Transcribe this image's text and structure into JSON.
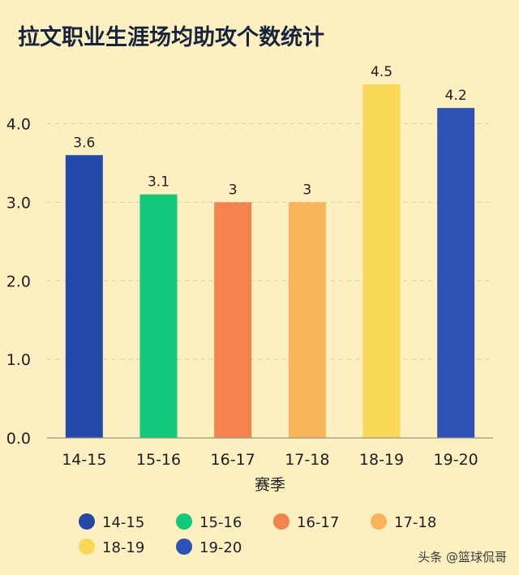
{
  "chart_data": {
    "type": "bar",
    "title": "拉文职业生涯场均助攻个数统计",
    "xlabel": "赛季",
    "ylabel": "",
    "categories": [
      "14-15",
      "15-16",
      "16-17",
      "17-18",
      "18-19",
      "19-20"
    ],
    "values": [
      3.6,
      3.1,
      3,
      3,
      4.5,
      4.2
    ],
    "data_labels": [
      "3.6",
      "3.1",
      "3",
      "3",
      "4.5",
      "4.2"
    ],
    "colors": [
      "#2448a8",
      "#10c97a",
      "#f4834f",
      "#f7b45a",
      "#f9d857",
      "#2d52b3"
    ],
    "ylim": [
      0,
      4.8
    ],
    "yticks": [
      {
        "value": 0,
        "label": "0.0"
      },
      {
        "value": 1,
        "label": "1.0"
      },
      {
        "value": 2,
        "label": "2.0"
      },
      {
        "value": 3,
        "label": "3.0"
      },
      {
        "value": 4,
        "label": "4.0"
      }
    ],
    "grid": true,
    "legend": {
      "placement": "bottom",
      "entries": [
        "14-15",
        "15-16",
        "16-17",
        "17-18",
        "18-19",
        "19-20"
      ]
    }
  },
  "watermark": "头条 @篮球侃哥"
}
